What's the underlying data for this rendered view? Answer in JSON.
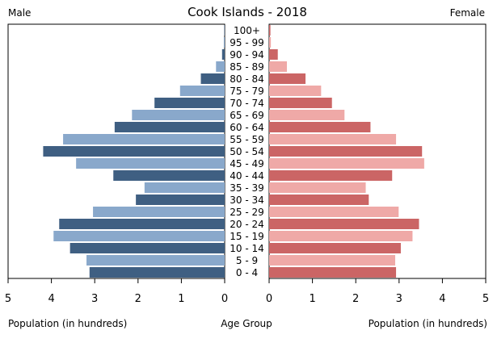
{
  "chart_data": {
    "type": "bar",
    "title": "Cook Islands - 2018",
    "left_label": "Male",
    "right_label": "Female",
    "xlabel_left": "Population (in hundreds)",
    "xlabel_center": "Age Group",
    "xlabel_right": "Population (in hundreds)",
    "xlim": [
      0,
      5
    ],
    "x_ticks": [
      "0",
      "1",
      "2",
      "3",
      "4",
      "5"
    ],
    "categories": [
      "100+",
      "95 - 99",
      "90 - 94",
      "85 - 89",
      "80 - 84",
      "75 - 79",
      "70 - 74",
      "65 - 69",
      "60 - 64",
      "55 - 59",
      "50 - 54",
      "45 - 49",
      "40 - 44",
      "35 - 39",
      "30 - 34",
      "25 - 29",
      "20 - 24",
      "15 - 19",
      "10 - 14",
      "5 - 9",
      "0 - 4"
    ],
    "series": [
      {
        "name": "Male",
        "values": [
          0.01,
          0.02,
          0.06,
          0.2,
          0.55,
          1.03,
          1.62,
          2.14,
          2.54,
          3.73,
          4.19,
          3.43,
          2.57,
          1.85,
          2.05,
          3.04,
          3.82,
          3.95,
          3.57,
          3.19,
          3.12
        ]
      },
      {
        "name": "Female",
        "values": [
          0.03,
          0.04,
          0.2,
          0.41,
          0.84,
          1.2,
          1.45,
          1.74,
          2.34,
          2.93,
          3.53,
          3.58,
          2.84,
          2.23,
          2.3,
          2.99,
          3.46,
          3.31,
          3.04,
          2.91,
          2.93
        ]
      }
    ],
    "colors": {
      "male_dark": "#3f5f82",
      "male_light": "#89a8cb",
      "female_dark": "#cb6565",
      "female_light": "#efa9a7",
      "frame": "#000000"
    }
  }
}
